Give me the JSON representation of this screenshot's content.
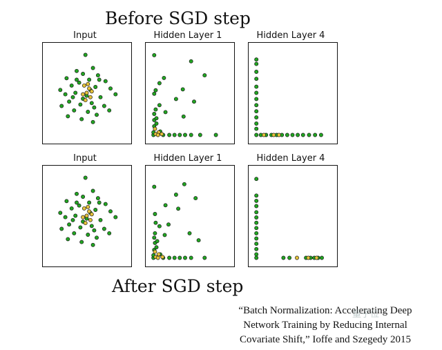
{
  "headings": {
    "before": "Before SGD step",
    "after": "After SGD step"
  },
  "citation": {
    "line1": "“Batch Normalization: Accelerating Deep",
    "line2": "Network Training by Reducing Internal",
    "line3": "Covariate Shift,” Ioffe and Szegedy 2015"
  },
  "watermark": "量子位",
  "colors": {
    "green": "#22a622",
    "yellow": "#e6c23a",
    "edge": "#1a1a1a"
  },
  "chart_data": [
    {
      "type": "scatter",
      "title": "Input",
      "xlim": [
        -3,
        3
      ],
      "ylim": [
        -3,
        3
      ],
      "grid": false,
      "series": [
        {
          "color": "green",
          "points": [
            [
              -0.1,
              2.6
            ],
            [
              -0.8,
              1.5
            ],
            [
              0.5,
              1.7
            ],
            [
              0.9,
              1.2
            ],
            [
              -1.6,
              1.0
            ],
            [
              -0.3,
              1.3
            ],
            [
              0.2,
              0.9
            ],
            [
              1.5,
              0.8
            ],
            [
              -1.2,
              0.5
            ],
            [
              -0.6,
              0.7
            ],
            [
              0.7,
              0.4
            ],
            [
              1.9,
              0.3
            ],
            [
              -2.1,
              0.2
            ],
            [
              -1.7,
              -0.1
            ],
            [
              -0.9,
              0.0
            ],
            [
              0.0,
              -0.2
            ],
            [
              1.1,
              -0.3
            ],
            [
              2.3,
              -0.1
            ],
            [
              -1.4,
              -0.6
            ],
            [
              -0.5,
              -0.8
            ],
            [
              0.4,
              -0.7
            ],
            [
              1.4,
              -0.9
            ],
            [
              -2.0,
              -0.9
            ],
            [
              -1.0,
              -1.2
            ],
            [
              0.1,
              -1.3
            ],
            [
              0.8,
              -1.5
            ],
            [
              1.8,
              -1.2
            ],
            [
              -0.4,
              -1.8
            ],
            [
              -1.5,
              -1.6
            ],
            [
              0.5,
              -2.0
            ],
            [
              -0.8,
              0.9
            ],
            [
              0.3,
              0.2
            ],
            [
              -0.3,
              -0.4
            ],
            [
              1.0,
              0.9
            ],
            [
              -1.1,
              -0.3
            ],
            [
              0.6,
              -1.0
            ]
          ]
        },
        {
          "color": "yellow",
          "points": [
            [
              -0.2,
              0.5
            ],
            [
              0.2,
              0.3
            ],
            [
              0.0,
              0.0
            ],
            [
              -0.3,
              -0.1
            ],
            [
              0.3,
              -0.3
            ],
            [
              0.1,
              0.6
            ],
            [
              -0.1,
              -0.5
            ],
            [
              0.4,
              0.1
            ]
          ]
        }
      ]
    },
    {
      "type": "scatter",
      "title": "Hidden Layer 1",
      "xlim": [
        0,
        10
      ],
      "ylim": [
        0,
        10
      ],
      "grid": false,
      "series": [
        {
          "color": "green",
          "points": [
            [
              0.3,
              9.3
            ],
            [
              5.2,
              8.6
            ],
            [
              7.0,
              7.0
            ],
            [
              1.6,
              6.7
            ],
            [
              1.0,
              6.1
            ],
            [
              0.5,
              5.3
            ],
            [
              4.1,
              5.4
            ],
            [
              0.3,
              4.9
            ],
            [
              3.2,
              4.3
            ],
            [
              5.6,
              4.0
            ],
            [
              1.0,
              3.6
            ],
            [
              0.5,
              3.1
            ],
            [
              0.3,
              2.6
            ],
            [
              1.8,
              2.8
            ],
            [
              4.2,
              2.3
            ],
            [
              0.3,
              1.9
            ],
            [
              0.6,
              1.5
            ],
            [
              0.3,
              1.2
            ],
            [
              1.5,
              0.2
            ],
            [
              2.3,
              0.2
            ],
            [
              3.0,
              0.2
            ],
            [
              3.7,
              0.2
            ],
            [
              4.4,
              0.2
            ],
            [
              5.2,
              0.2
            ],
            [
              6.4,
              0.2
            ],
            [
              8.5,
              0.2
            ],
            [
              0.2,
              0.2
            ],
            [
              0.2,
              0.5
            ],
            [
              1.1,
              0.6
            ],
            [
              0.6,
              2.1
            ]
          ]
        },
        {
          "color": "yellow",
          "points": [
            [
              0.5,
              0.3
            ],
            [
              0.9,
              0.5
            ],
            [
              0.4,
              0.9
            ],
            [
              1.3,
              0.3
            ],
            [
              0.8,
              0.2
            ]
          ]
        }
      ]
    },
    {
      "type": "scatter",
      "title": "Hidden Layer 4",
      "xlim": [
        0,
        10
      ],
      "ylim": [
        0,
        10
      ],
      "grid": false,
      "series": [
        {
          "color": "green",
          "points": [
            [
              0.2,
              8.8
            ],
            [
              0.2,
              8.3
            ],
            [
              0.2,
              7.4
            ],
            [
              0.2,
              6.6
            ],
            [
              0.2,
              5.7
            ],
            [
              0.2,
              5.0
            ],
            [
              0.2,
              4.3
            ],
            [
              0.2,
              3.6
            ],
            [
              0.2,
              2.9
            ],
            [
              0.2,
              2.2
            ],
            [
              0.2,
              1.5
            ],
            [
              0.2,
              0.9
            ],
            [
              0.2,
              0.2
            ],
            [
              0.8,
              0.2
            ],
            [
              1.5,
              0.2
            ],
            [
              2.2,
              0.2
            ],
            [
              2.9,
              0.2
            ],
            [
              3.6,
              0.2
            ],
            [
              4.3,
              0.2
            ],
            [
              5.0,
              0.2
            ],
            [
              5.7,
              0.2
            ],
            [
              6.4,
              0.2
            ],
            [
              7.2,
              0.2
            ],
            [
              8.0,
              0.2
            ],
            [
              8.8,
              0.2
            ]
          ]
        },
        {
          "color": "yellow",
          "points": [
            [
              1.2,
              0.2
            ],
            [
              2.5,
              0.2
            ],
            [
              3.2,
              0.2
            ]
          ]
        }
      ]
    },
    {
      "type": "scatter",
      "title": "Input",
      "xlim": [
        -3,
        3
      ],
      "ylim": [
        -3,
        3
      ],
      "grid": false,
      "series": [
        {
          "color": "green",
          "points": [
            [
              -0.1,
              2.6
            ],
            [
              -0.8,
              1.5
            ],
            [
              0.5,
              1.7
            ],
            [
              0.9,
              1.2
            ],
            [
              -1.6,
              1.0
            ],
            [
              -0.3,
              1.3
            ],
            [
              0.2,
              0.9
            ],
            [
              1.5,
              0.8
            ],
            [
              -1.2,
              0.5
            ],
            [
              -0.6,
              0.7
            ],
            [
              0.7,
              0.4
            ],
            [
              1.9,
              0.3
            ],
            [
              -2.1,
              0.2
            ],
            [
              -1.7,
              -0.1
            ],
            [
              -0.9,
              0.0
            ],
            [
              0.0,
              -0.2
            ],
            [
              1.1,
              -0.3
            ],
            [
              2.3,
              -0.1
            ],
            [
              -1.4,
              -0.6
            ],
            [
              -0.5,
              -0.8
            ],
            [
              0.4,
              -0.7
            ],
            [
              1.4,
              -0.9
            ],
            [
              -2.0,
              -0.9
            ],
            [
              -1.0,
              -1.2
            ],
            [
              0.1,
              -1.3
            ],
            [
              0.8,
              -1.5
            ],
            [
              1.8,
              -1.2
            ],
            [
              -0.4,
              -1.8
            ],
            [
              -1.5,
              -1.6
            ],
            [
              0.5,
              -2.0
            ],
            [
              -0.8,
              0.9
            ],
            [
              0.3,
              0.2
            ],
            [
              -0.3,
              -0.4
            ],
            [
              1.0,
              0.9
            ],
            [
              -1.1,
              -0.3
            ],
            [
              0.6,
              -1.0
            ]
          ]
        },
        {
          "color": "yellow",
          "points": [
            [
              -0.2,
              0.5
            ],
            [
              0.2,
              0.3
            ],
            [
              0.0,
              0.0
            ],
            [
              -0.3,
              -0.1
            ],
            [
              0.3,
              -0.3
            ],
            [
              0.1,
              0.6
            ],
            [
              -0.1,
              -0.5
            ],
            [
              0.4,
              0.1
            ]
          ]
        }
      ]
    },
    {
      "type": "scatter",
      "title": "Hidden Layer 1",
      "xlim": [
        0,
        10
      ],
      "ylim": [
        0,
        10
      ],
      "grid": false,
      "series": [
        {
          "color": "green",
          "points": [
            [
              0.3,
              8.3
            ],
            [
              4.3,
              8.6
            ],
            [
              5.8,
              7.0
            ],
            [
              3.2,
              7.4
            ],
            [
              1.8,
              6.2
            ],
            [
              0.4,
              5.2
            ],
            [
              3.5,
              5.8
            ],
            [
              0.5,
              4.2
            ],
            [
              2.2,
              4.0
            ],
            [
              5.0,
              3.0
            ],
            [
              1.0,
              3.8
            ],
            [
              0.4,
              3.0
            ],
            [
              0.3,
              2.5
            ],
            [
              1.7,
              2.8
            ],
            [
              6.2,
              2.2
            ],
            [
              0.4,
              1.9
            ],
            [
              0.6,
              1.4
            ],
            [
              0.3,
              1.1
            ],
            [
              1.5,
              0.2
            ],
            [
              2.3,
              0.2
            ],
            [
              3.0,
              0.2
            ],
            [
              3.7,
              0.2
            ],
            [
              4.4,
              0.2
            ],
            [
              5.2,
              0.2
            ],
            [
              7.0,
              0.2
            ],
            [
              0.2,
              0.2
            ],
            [
              0.2,
              0.5
            ],
            [
              1.1,
              0.6
            ],
            [
              0.7,
              2.1
            ]
          ]
        },
        {
          "color": "yellow",
          "points": [
            [
              0.5,
              0.3
            ],
            [
              0.9,
              0.6
            ],
            [
              0.4,
              0.9
            ],
            [
              1.4,
              0.3
            ],
            [
              0.8,
              0.2
            ]
          ]
        }
      ]
    },
    {
      "type": "scatter",
      "title": "Hidden Layer 4",
      "xlim": [
        0,
        10
      ],
      "ylim": [
        0,
        10
      ],
      "grid": false,
      "series": [
        {
          "color": "green",
          "points": [
            [
              0.2,
              9.2
            ],
            [
              0.2,
              7.3
            ],
            [
              0.2,
              6.7
            ],
            [
              0.2,
              6.1
            ],
            [
              0.2,
              5.4
            ],
            [
              0.2,
              4.8
            ],
            [
              0.2,
              4.2
            ],
            [
              0.2,
              3.6
            ],
            [
              0.2,
              3.0
            ],
            [
              0.2,
              2.4
            ],
            [
              0.2,
              1.8
            ],
            [
              0.2,
              1.2
            ],
            [
              0.2,
              0.6
            ],
            [
              0.2,
              0.2
            ],
            [
              3.8,
              0.2
            ],
            [
              4.6,
              0.2
            ],
            [
              6.8,
              0.2
            ],
            [
              7.4,
              0.2
            ],
            [
              7.9,
              0.2
            ],
            [
              8.4,
              0.2
            ],
            [
              8.9,
              0.2
            ]
          ]
        },
        {
          "color": "yellow",
          "points": [
            [
              5.6,
              0.2
            ],
            [
              7.1,
              0.2
            ],
            [
              8.2,
              0.2
            ]
          ]
        }
      ]
    }
  ]
}
